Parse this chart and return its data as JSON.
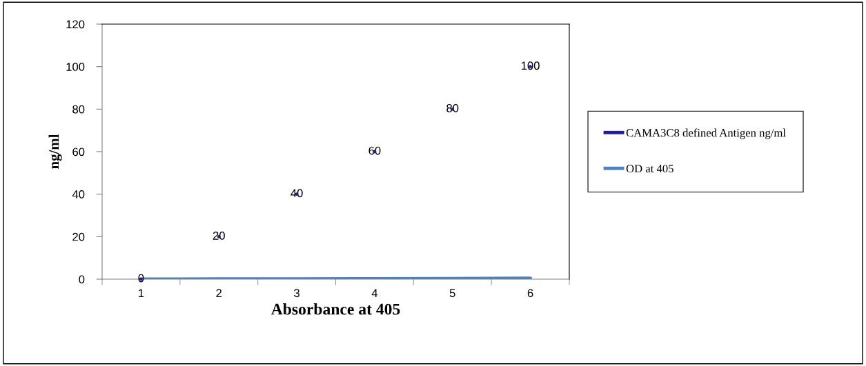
{
  "chart_data": {
    "type": "line",
    "xlabel": "Absorbance at 405",
    "ylabel": "ng/ml",
    "categories": [
      "1",
      "2",
      "3",
      "4",
      "5",
      "6"
    ],
    "series": [
      {
        "name": "CAMA3C8 defined Antigen ng/ml",
        "type": "scatter",
        "marker": "none",
        "color": "#1f1f8f",
        "values": [
          0,
          20,
          40,
          60,
          80,
          100
        ],
        "value_labels": [
          "0",
          "20",
          "40",
          "60",
          "80",
          "100"
        ]
      },
      {
        "name": "OD at 405",
        "color": "#4f81bd",
        "values": [
          0,
          0.1,
          0.1,
          0.2,
          0.3,
          0.4
        ]
      }
    ],
    "ylim": [
      0,
      120
    ],
    "yticks": [
      0,
      20,
      40,
      60,
      80,
      100,
      120
    ],
    "grid": false,
    "legend": "right",
    "marker": "none",
    "line_style": "solid"
  }
}
